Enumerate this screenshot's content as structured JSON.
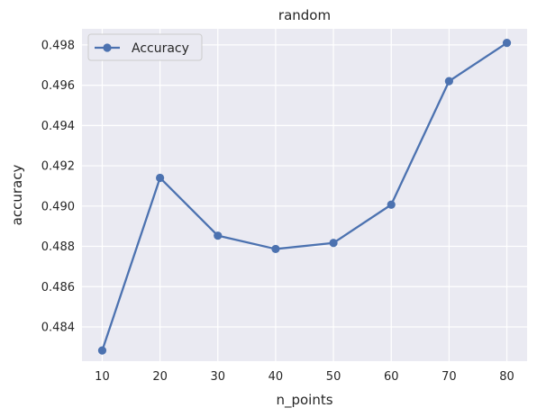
{
  "chart_data": {
    "type": "line",
    "title": "random",
    "xlabel": "n_points",
    "ylabel": "accuracy",
    "x": [
      10,
      20,
      30,
      40,
      50,
      60,
      70,
      80
    ],
    "xticks": [
      "10",
      "20",
      "30",
      "40",
      "50",
      "60",
      "70",
      "80"
    ],
    "yticks": [
      "0.484",
      "0.486",
      "0.488",
      "0.490",
      "0.492",
      "0.494",
      "0.496",
      "0.498"
    ],
    "ytick_values": [
      0.484,
      0.486,
      0.488,
      0.49,
      0.492,
      0.494,
      0.496,
      0.498
    ],
    "xlim": [
      6.5,
      83.5
    ],
    "ylim": [
      0.4823,
      0.4988
    ],
    "grid": true,
    "legend_position": "top-left",
    "series": [
      {
        "name": "Accuracy",
        "color": "#4c72b0",
        "marker": "circle",
        "values": [
          0.48283,
          0.4914,
          0.48853,
          0.48787,
          0.48817,
          0.49007,
          0.4962,
          0.4981
        ]
      }
    ],
    "background_color": "#eaeaf2",
    "grid_color": "#ffffff"
  }
}
